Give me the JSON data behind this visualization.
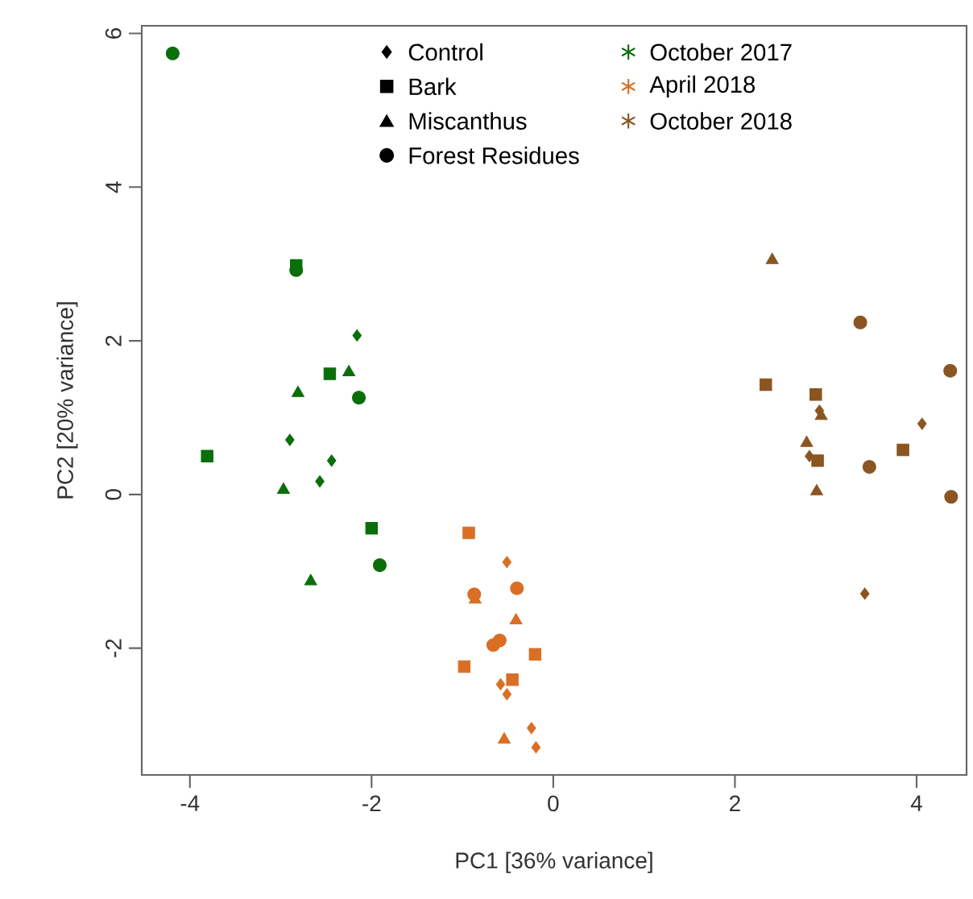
{
  "chart_data": {
    "type": "scatter",
    "xlabel": "PC1 [36% variance]",
    "ylabel": "PC2 [20% variance]",
    "xlim": [
      -4.53,
      4.55
    ],
    "ylim": [
      -3.65,
      6.1
    ],
    "xticks": [
      -4,
      -2,
      0,
      2,
      4
    ],
    "yticks": [
      -2,
      0,
      2,
      4,
      6
    ],
    "grid": false,
    "annotations": [
      "Control",
      "Bark",
      "Miscanthus",
      "Forest Residues",
      "October 2017",
      "April 2018",
      "October 2018"
    ],
    "series": [
      {
        "color": "#0a6e0a",
        "marker": "diamond",
        "x": [
          -2.16,
          -2.9,
          -2.44,
          -2.57
        ],
        "values": [
          2.07,
          0.71,
          0.44,
          0.17
        ]
      },
      {
        "color": "#0a6e0a",
        "marker": "square",
        "x": [
          -2.83,
          -2.46,
          -3.81,
          -2.0
        ],
        "values": [
          2.98,
          1.57,
          0.5,
          -0.44
        ]
      },
      {
        "color": "#0a6e0a",
        "marker": "triangle",
        "x": [
          -2.25,
          -2.81,
          -2.97,
          -2.67
        ],
        "values": [
          1.59,
          1.32,
          0.06,
          -1.13
        ]
      },
      {
        "color": "#0a6e0a",
        "marker": "circle",
        "x": [
          -4.19,
          -2.14,
          -1.91,
          -2.83
        ],
        "values": [
          5.74,
          1.26,
          -0.92,
          2.92
        ]
      },
      {
        "color": "#d86f25",
        "marker": "diamond",
        "x": [
          -0.51,
          -0.51,
          -0.24,
          -0.19,
          -0.58
        ],
        "values": [
          -0.88,
          -2.6,
          -3.04,
          -3.29,
          -2.47
        ]
      },
      {
        "color": "#d86f25",
        "marker": "square",
        "x": [
          -0.93,
          -0.2,
          -0.98,
          -0.45
        ],
        "values": [
          -0.5,
          -2.08,
          -2.24,
          -2.41
        ]
      },
      {
        "color": "#d86f25",
        "marker": "triangle",
        "x": [
          -0.86,
          -0.41,
          -0.54
        ],
        "values": [
          -1.37,
          -1.64,
          -3.19
        ]
      },
      {
        "color": "#d86f25",
        "marker": "circle",
        "x": [
          -0.4,
          -0.87,
          -0.66,
          -0.59
        ],
        "values": [
          -1.22,
          -1.3,
          -1.96,
          -1.9
        ]
      },
      {
        "color": "#8a5520",
        "marker": "diamond",
        "x": [
          4.06,
          3.43,
          2.93,
          2.82
        ],
        "values": [
          0.92,
          -1.29,
          1.09,
          0.5
        ]
      },
      {
        "color": "#8a5520",
        "marker": "square",
        "x": [
          2.34,
          2.89,
          3.85,
          2.91
        ],
        "values": [
          1.43,
          1.3,
          0.58,
          0.44
        ]
      },
      {
        "color": "#8a5520",
        "marker": "triangle",
        "x": [
          2.41,
          2.95,
          2.79,
          2.9
        ],
        "values": [
          3.05,
          1.02,
          0.67,
          0.04
        ]
      },
      {
        "color": "#8a5520",
        "marker": "circle",
        "x": [
          3.38,
          4.37,
          3.48,
          4.38
        ],
        "values": [
          2.24,
          1.61,
          0.36,
          -0.03
        ]
      }
    ]
  }
}
